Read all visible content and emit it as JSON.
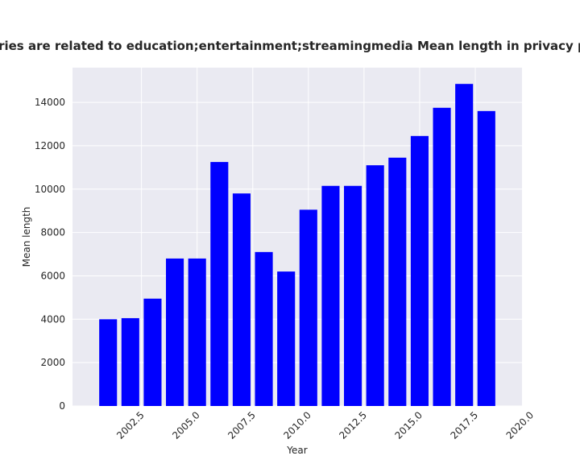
{
  "chart_data": {
    "type": "bar",
    "title": "Categories are related to education;entertainment;streamingmedia Mean length in privacy policies",
    "xlabel": "Year",
    "ylabel": "Mean length",
    "x": [
      2001,
      2002,
      2003,
      2004,
      2005,
      2006,
      2007,
      2008,
      2009,
      2010,
      2011,
      2012,
      2013,
      2014,
      2015,
      2016,
      2017,
      2018
    ],
    "values": [
      4000,
      4050,
      4950,
      6800,
      6800,
      11250,
      9800,
      7100,
      6200,
      9050,
      10150,
      10150,
      11100,
      11450,
      12450,
      13750,
      14850,
      13600
    ],
    "xlim": [
      1999.4,
      2019.6
    ],
    "ylim": [
      0,
      15600
    ],
    "xticks": [
      2002.5,
      2005.0,
      2007.5,
      2010.0,
      2012.5,
      2015.0,
      2017.5,
      2020.0
    ],
    "xtick_labels": [
      "2002.5",
      "2005.0",
      "2007.5",
      "2010.0",
      "2012.5",
      "2015.0",
      "2017.5",
      "2020.0"
    ],
    "yticks": [
      0,
      2000,
      4000,
      6000,
      8000,
      10000,
      12000,
      14000
    ],
    "ytick_labels": [
      "0",
      "2000",
      "4000",
      "6000",
      "8000",
      "10000",
      "12000",
      "14000"
    ],
    "bar_color": "#0000ff",
    "plot_background": "#eaeaf2",
    "grid_color": "#ffffff",
    "grid": true,
    "legend": "none"
  }
}
